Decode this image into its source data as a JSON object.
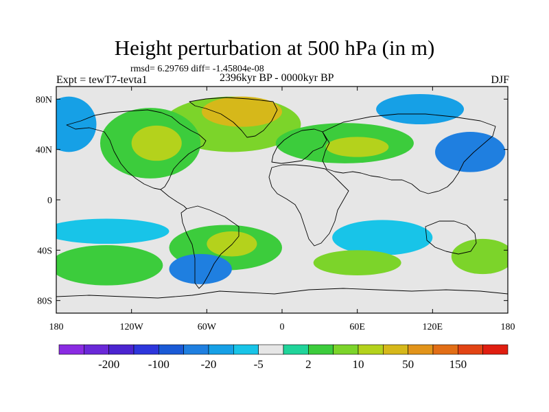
{
  "chart_data": {
    "type": "heatmap",
    "title": "Height perturbation at 500 hPa (in m)",
    "stats": "rmsd= 6.29769 diff= -1.45804e-08",
    "experiment": "Expt = tewT7-tevta1",
    "period": "2396kyr BP - 0000kyr BP",
    "season": "DJF",
    "x_range": [
      -180,
      180
    ],
    "y_range": [
      -90,
      90
    ],
    "x_ticks": [
      {
        "value": -180,
        "label": "180"
      },
      {
        "value": -120,
        "label": "120W"
      },
      {
        "value": -60,
        "label": "60W"
      },
      {
        "value": 0,
        "label": "0"
      },
      {
        "value": 60,
        "label": "60E"
      },
      {
        "value": 120,
        "label": "120E"
      },
      {
        "value": 180,
        "label": "180"
      }
    ],
    "y_ticks": [
      {
        "value": 80,
        "label": "80N"
      },
      {
        "value": 40,
        "label": "40N"
      },
      {
        "value": 0,
        "label": "0"
      },
      {
        "value": -40,
        "label": "40S"
      },
      {
        "value": -80,
        "label": "80S"
      }
    ],
    "colorbar": {
      "colors": [
        "#8a2be2",
        "#6a28d8",
        "#4b24d0",
        "#2d36dc",
        "#1a5ad6",
        "#1f7fe0",
        "#16a0e6",
        "#18c4e8",
        "#e6e6e6",
        "#20d49a",
        "#3ccc3c",
        "#7cd42a",
        "#b4d21c",
        "#d6b81a",
        "#e2941a",
        "#e26e16",
        "#e24414",
        "#e01e10"
      ],
      "labels": [
        {
          "after_bin": 1,
          "label": "-200"
        },
        {
          "after_bin": 3,
          "label": "-100"
        },
        {
          "after_bin": 5,
          "label": "-20"
        },
        {
          "after_bin": 7,
          "label": "-5"
        },
        {
          "after_bin": 9,
          "label": "2"
        },
        {
          "after_bin": 11,
          "label": "10"
        },
        {
          "after_bin": 13,
          "label": "50"
        },
        {
          "after_bin": 15,
          "label": "150"
        }
      ]
    },
    "anomaly_fields": [
      {
        "region": "greenland-arctic",
        "lon": -32,
        "lat": 70,
        "rx": 32,
        "ry": 12,
        "bin": 13
      },
      {
        "region": "north-atlantic",
        "lon": -40,
        "lat": 60,
        "rx": 55,
        "ry": 22,
        "bin": 11
      },
      {
        "region": "north-america",
        "lon": -100,
        "lat": 45,
        "rx": 20,
        "ry": 14,
        "bin": 12
      },
      {
        "region": "north-america-outer",
        "lon": -105,
        "lat": 45,
        "rx": 40,
        "ry": 28,
        "bin": 10
      },
      {
        "region": "asia",
        "lon": 60,
        "lat": 42,
        "rx": 25,
        "ry": 8,
        "bin": 12
      },
      {
        "region": "eurasia",
        "lon": 50,
        "lat": 45,
        "rx": 55,
        "ry": 16,
        "bin": 10
      },
      {
        "region": "north-pacific-west",
        "lon": -170,
        "lat": 60,
        "rx": 22,
        "ry": 22,
        "bin": 6
      },
      {
        "region": "north-pacific-east",
        "lon": 150,
        "lat": 38,
        "rx": 28,
        "ry": 16,
        "bin": 5
      },
      {
        "region": "siberia-north",
        "lon": 110,
        "lat": 72,
        "rx": 35,
        "ry": 12,
        "bin": 6
      },
      {
        "region": "pacific-south",
        "lon": -140,
        "lat": -25,
        "rx": 50,
        "ry": 10,
        "bin": 7
      },
      {
        "region": "south-atlantic",
        "lon": -40,
        "lat": -35,
        "rx": 20,
        "ry": 10,
        "bin": 12
      },
      {
        "region": "south-atlantic-outer",
        "lon": -45,
        "lat": -38,
        "rx": 45,
        "ry": 18,
        "bin": 10
      },
      {
        "region": "south-pacific",
        "lon": -140,
        "lat": -52,
        "rx": 45,
        "ry": 16,
        "bin": 10
      },
      {
        "region": "drake-passage",
        "lon": -65,
        "lat": -55,
        "rx": 25,
        "ry": 12,
        "bin": 5
      },
      {
        "region": "indian-ocean",
        "lon": 80,
        "lat": -30,
        "rx": 40,
        "ry": 14,
        "bin": 7
      },
      {
        "region": "south-indian",
        "lon": 60,
        "lat": -50,
        "rx": 35,
        "ry": 10,
        "bin": 11
      },
      {
        "region": "southwest-pacific",
        "lon": 160,
        "lat": -45,
        "rx": 25,
        "ry": 14,
        "bin": 11
      }
    ]
  }
}
